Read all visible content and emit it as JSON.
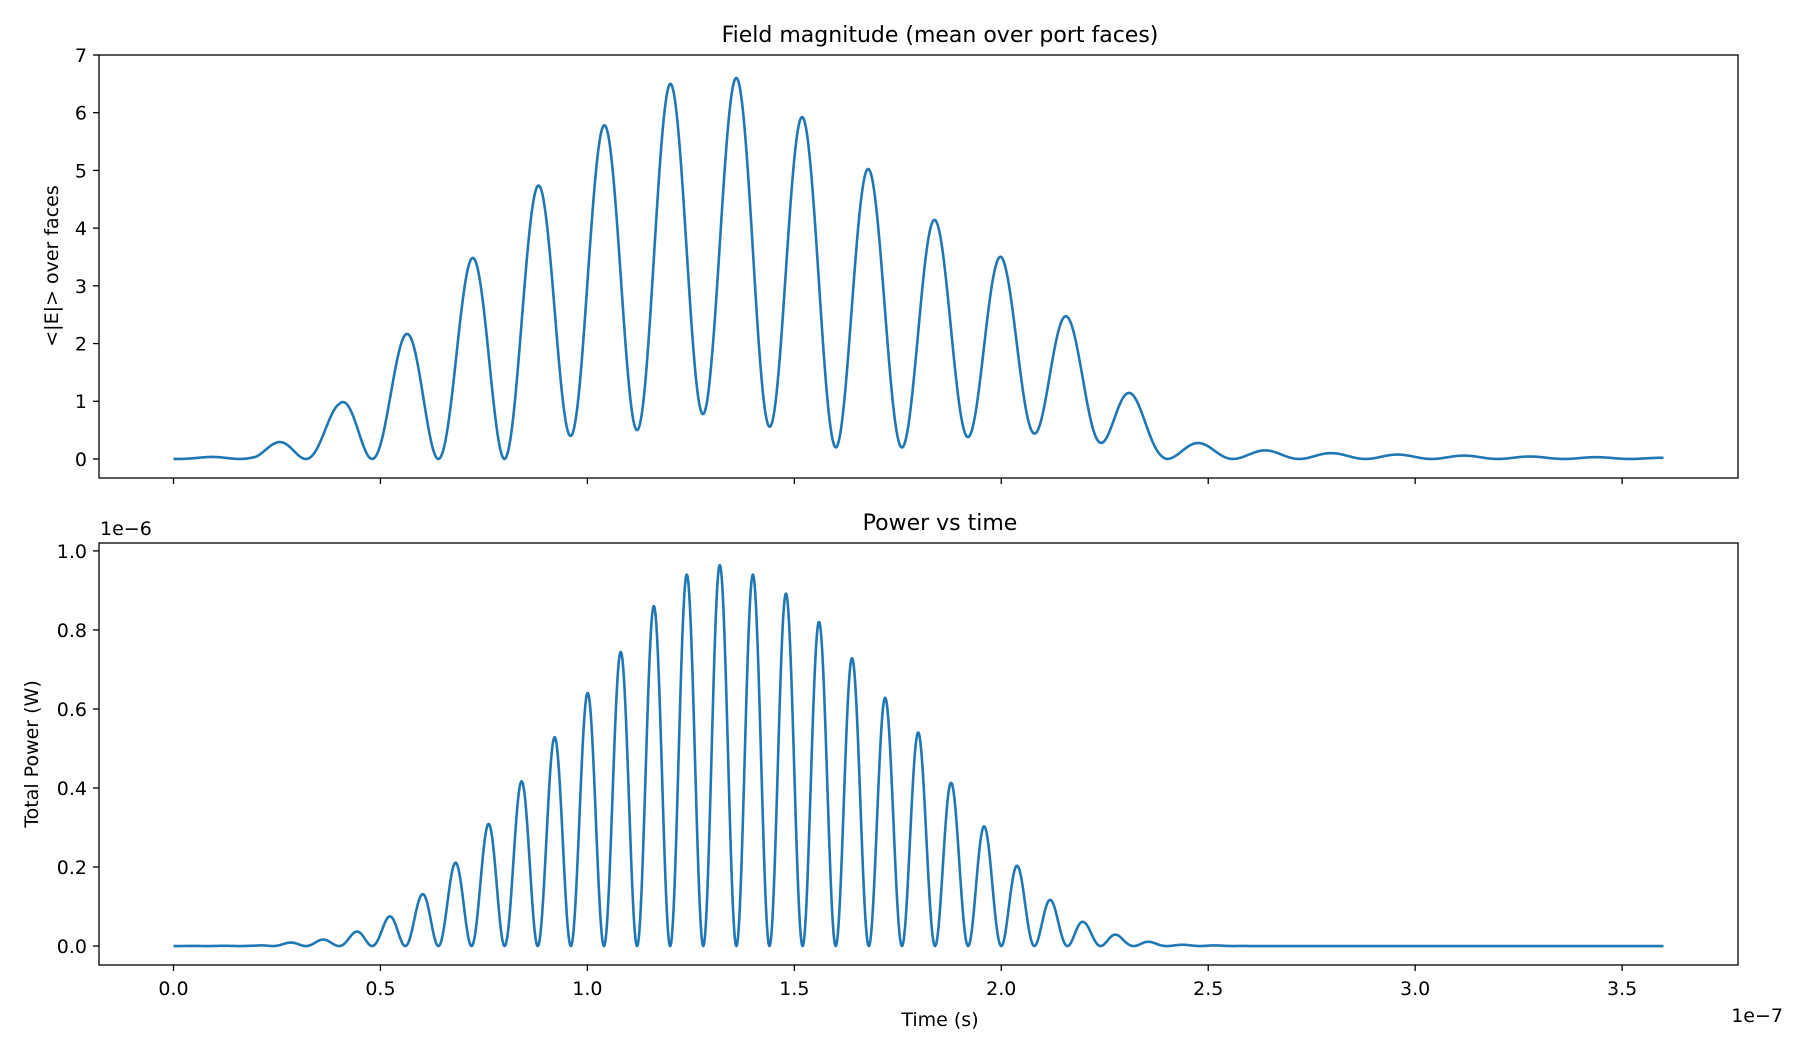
{
  "chart_data": [
    {
      "type": "line",
      "title": "Field magnitude (mean over port faces)",
      "xlabel": "",
      "ylabel": "<|E|> over faces",
      "xlim": [
        -1.8e-08,
        3.78e-07
      ],
      "ylim": [
        -0.33,
        7.0
      ],
      "x_ticks": [
        0,
        5e-08,
        1e-07,
        1.5e-07,
        2e-07,
        2.5e-07,
        3e-07,
        3.5e-07
      ],
      "x_tick_labels": [],
      "y_ticks": [
        0,
        1,
        2,
        3,
        4,
        5,
        6,
        7
      ],
      "y_tick_labels": [
        "0",
        "1",
        "2",
        "3",
        "4",
        "5",
        "6",
        "7"
      ],
      "grid": false,
      "color": "#1f77b4",
      "series": [
        {
          "signal_model": {
            "t_start": 0,
            "t_end": 3.6e-07,
            "period": 1.6e-08,
            "envelope_t": [
              0,
              2e-08,
              4e-08,
              6e-08,
              8e-08,
              1e-07,
              1.2e-07,
              1.3e-07,
              1.4e-07,
              1.6e-07,
              1.8e-07,
              2e-07,
              2.2e-07,
              2.4e-07,
              2.6e-07,
              2.8e-07,
              3e-07,
              3.3e-07,
              3.6e-07
            ],
            "envelope_peak": [
              0.0,
              0.08,
              0.95,
              2.45,
              4.15,
              5.6,
              6.5,
              6.68,
              6.55,
              5.5,
              4.3,
              3.5,
              2.2,
              0.35,
              0.16,
              0.1,
              0.07,
              0.04,
              0.02
            ],
            "envelope_trough": [
              0.0,
              0.0,
              0.0,
              0.0,
              0.0,
              0.5,
              0.5,
              0.85,
              0.65,
              0.2,
              0.2,
              0.5,
              0.35,
              0.0,
              0.0,
              0.0,
              0.0,
              0.0,
              0.0
            ]
          }
        }
      ]
    },
    {
      "type": "line",
      "title": "Power vs time",
      "xlabel": "Time (s)",
      "ylabel": "Total Power (W)",
      "xlim": [
        -1.8e-08,
        3.78e-07
      ],
      "ylim": [
        -4.8e-08,
        1.02e-06
      ],
      "y_offset_label": "1e−6",
      "x_offset_label": "1e−7",
      "x_ticks": [
        0,
        5e-08,
        1e-07,
        1.5e-07,
        2e-07,
        2.5e-07,
        3e-07,
        3.5e-07
      ],
      "x_tick_labels": [
        "0.0",
        "0.5",
        "1.0",
        "1.5",
        "2.0",
        "2.5",
        "3.0",
        "3.5"
      ],
      "y_ticks": [
        0,
        2e-07,
        4e-07,
        6e-07,
        8e-07,
        1e-06
      ],
      "y_tick_labels": [
        "0.0",
        "0.2",
        "0.4",
        "0.6",
        "0.8",
        "1.0"
      ],
      "grid": false,
      "color": "#1f77b4",
      "series": [
        {
          "signal_model": {
            "t_start": 0,
            "t_end": 3.6e-07,
            "period": 8e-09,
            "envelope_t": [
              0,
              2e-08,
              4e-08,
              5e-08,
              6e-08,
              7e-08,
              8e-08,
              9e-08,
              1e-07,
              1.1e-07,
              1.2e-07,
              1.3e-07,
              1.4e-07,
              1.5e-07,
              1.6e-07,
              1.7e-07,
              1.8e-07,
              1.9e-07,
              2e-07,
              2.1e-07,
              2.2e-07,
              2.3e-07,
              2.4e-07,
              2.6e-07,
              3.6e-07
            ],
            "envelope_peak": [
              0,
              1e-09,
              2e-08,
              6e-08,
              1.3e-07,
              2.3e-07,
              3.6e-07,
              5e-07,
              6.4e-07,
              7.7e-07,
              9.2e-07,
              9.7e-07,
              9.4e-07,
              8.8e-07,
              7.8e-07,
              6.5e-07,
              5.4e-07,
              3.8e-07,
              2.5e-07,
              1.3e-07,
              6e-08,
              2e-08,
              4e-09,
              0,
              0
            ],
            "envelope_trough": [
              0,
              0,
              0,
              0,
              0,
              0,
              0,
              0,
              0,
              0,
              0,
              0,
              0,
              0,
              0,
              0,
              0,
              0,
              0,
              0,
              0,
              0,
              0,
              0,
              0
            ]
          }
        }
      ]
    }
  ]
}
